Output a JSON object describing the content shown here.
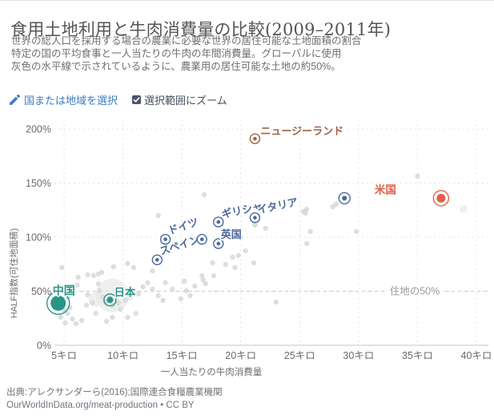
{
  "header": {
    "title": "食用土地利用と牛肉消費量の比較(2009–2011年)",
    "subtitle_lines": [
      "世界の総人口を採用する場合の農業に必要な世界の居住可能な土地面積の割合",
      "特定の国の平均食事と一人当たりの牛肉の年間消費量。グローバルに使用",
      "灰色の水平線で示されているように、農業用の居住可能な土地の約50%。"
    ],
    "select_label": "国または地域を選択",
    "zoom_label": "選択範囲にズーム",
    "zoom_checked": true
  },
  "chart_data": {
    "type": "scatter",
    "title": "食用土地利用と牛肉消費量の比較(2009–2011年)",
    "xlabel": "一人当たりの牛肉消費量",
    "ylabel": "HALF指数(可住地面積)",
    "xlim": [
      4.18,
      41.02
    ],
    "ylim": [
      0,
      208.9
    ],
    "grid": true,
    "x_ticks": [
      {
        "value": 5,
        "label": "5キロ"
      },
      {
        "value": 10,
        "label": "10キロ"
      },
      {
        "value": 15,
        "label": "15キロ"
      },
      {
        "value": 20,
        "label": "20キロ"
      },
      {
        "value": 25,
        "label": "25キロ"
      },
      {
        "value": 30,
        "label": "30キロ"
      },
      {
        "value": 35,
        "label": "35キロ"
      },
      {
        "value": 40,
        "label": "40キロ"
      }
    ],
    "y_ticks": [
      {
        "value": 0,
        "label": "0%"
      },
      {
        "value": 50,
        "label": "50%"
      },
      {
        "value": 100,
        "label": "100%"
      },
      {
        "value": 150,
        "label": "150%"
      },
      {
        "value": 200,
        "label": "200%"
      }
    ],
    "reference_line": {
      "value": 50,
      "label": "住地の50%"
    },
    "series": {
      "highlighted": [
        {
          "id": "china",
          "label": "中国",
          "x": 4.5,
          "y": 39,
          "color": "teal",
          "r": 9.5,
          "ring_r": 14,
          "label_dx": -7,
          "label_dy": -11,
          "label_rot": 0,
          "label_anchor": "start",
          "label_size": 14
        },
        {
          "id": "japan",
          "label": "日本",
          "x": 8.9,
          "y": 42,
          "color": "teal",
          "r": 4,
          "ring_r": 7.5,
          "label_dx": 5,
          "label_dy": -5,
          "label_rot": 0,
          "label_anchor": "start",
          "label_size": 13.5
        },
        {
          "id": "spain",
          "label": "スペイン",
          "x": 12.9,
          "y": 79,
          "color": "blue",
          "r": 2.3,
          "ring_r": 6,
          "label_dx": 5,
          "label_dy": -6,
          "label_rot": -18,
          "label_anchor": "start",
          "label_size": 13
        },
        {
          "id": "germany",
          "label": "ドイツ",
          "x": 13.6,
          "y": 98,
          "color": "blue",
          "r": 2.3,
          "ring_r": 6,
          "label_dx": 5,
          "label_dy": -6,
          "label_rot": -18,
          "label_anchor": "start",
          "label_size": 13
        },
        {
          "id": "unlabeled-a",
          "label": "",
          "x": 16.7,
          "y": 98,
          "color": "blue",
          "r": 2.3,
          "ring_r": 6,
          "label_dx": 0,
          "label_dy": 0,
          "label_rot": 0,
          "label_anchor": "start",
          "label_size": 13
        },
        {
          "id": "uk",
          "label": "英国",
          "x": 18.1,
          "y": 94,
          "color": "blue",
          "r": 2.3,
          "ring_r": 6,
          "label_dx": 3,
          "label_dy": -7,
          "label_rot": 0,
          "label_anchor": "start",
          "label_size": 13
        },
        {
          "id": "greece",
          "label": "ギリシャ",
          "x": 18.1,
          "y": 114,
          "color": "blue",
          "r": 2.3,
          "ring_r": 6,
          "label_dx": 5,
          "label_dy": -5,
          "label_rot": -12,
          "label_anchor": "start",
          "label_size": 13
        },
        {
          "id": "italy",
          "label": "イタリア",
          "x": 21.2,
          "y": 118,
          "color": "blue",
          "r": 2.3,
          "ring_r": 6,
          "label_dx": 4,
          "label_dy": -5,
          "label_rot": -12,
          "label_anchor": "start",
          "label_size": 13
        },
        {
          "id": "new-zealand",
          "label": "ニュージーランド",
          "x": 21.2,
          "y": 191,
          "color": "brown",
          "r": 2.3,
          "ring_r": 6,
          "label_dx": 7,
          "label_dy": -5,
          "label_rot": 0,
          "label_anchor": "start",
          "label_size": 13
        },
        {
          "id": "unlabeled-b",
          "label": "",
          "x": 28.8,
          "y": 136,
          "color": "blue",
          "r": 3,
          "ring_r": 7,
          "label_dx": 0,
          "label_dy": 0,
          "label_rot": 0,
          "label_anchor": "start",
          "label_size": 13
        },
        {
          "id": "usa",
          "label": "米国",
          "x": 37,
          "y": 136,
          "color": "red",
          "r": 5.5,
          "ring_r": 9.5,
          "label_dx": -56,
          "label_dy": -6,
          "label_rot": 0,
          "label_anchor": "end",
          "label_size": 13.5
        }
      ],
      "background_points": [
        [
          4.7,
          25.9
        ],
        [
          4.8,
          71.9
        ],
        [
          5,
          32.6
        ],
        [
          5.1,
          20.7
        ],
        [
          5.3,
          29.6
        ],
        [
          5.3,
          44.4
        ],
        [
          5.5,
          34.8
        ],
        [
          5.7,
          24.4
        ],
        [
          5.7,
          50.4
        ],
        [
          6,
          20
        ],
        [
          6.1,
          55.6
        ],
        [
          6.2,
          63
        ],
        [
          6.5,
          23
        ],
        [
          6.9,
          37
        ],
        [
          7,
          46.7
        ],
        [
          7,
          65.2
        ],
        [
          7.4,
          39.3
        ],
        [
          7.5,
          64.4
        ],
        [
          7.7,
          29.6
        ],
        [
          7.9,
          57
        ],
        [
          7.9,
          65.9
        ],
        [
          8,
          50.4
        ],
        [
          8.2,
          67.4
        ],
        [
          8.3,
          44.4
        ],
        [
          8.5,
          40
        ],
        [
          8.6,
          22.2
        ],
        [
          9.1,
          25.9
        ],
        [
          9.1,
          37
        ],
        [
          9.2,
          72.6
        ],
        [
          9.6,
          39.3
        ],
        [
          9.8,
          33.3
        ],
        [
          10.2,
          41.5
        ],
        [
          10.4,
          25.9
        ],
        [
          10.4,
          75.6
        ],
        [
          10.6,
          44.4
        ],
        [
          10.9,
          71.9
        ],
        [
          11.1,
          29.6
        ],
        [
          11.3,
          47.4
        ],
        [
          11.7,
          54.1
        ],
        [
          12.1,
          57.8
        ],
        [
          12.5,
          51.9
        ],
        [
          12.5,
          68.9
        ],
        [
          13,
          45.9
        ],
        [
          13.4,
          41.5
        ],
        [
          13.6,
          57.8
        ],
        [
          14.2,
          51.9
        ],
        [
          14.9,
          43
        ],
        [
          15.2,
          59.3
        ],
        [
          15.4,
          50.4
        ],
        [
          15.7,
          45.9
        ],
        [
          16.1,
          54.8
        ],
        [
          16.7,
          64.4
        ],
        [
          16.8,
          60.7
        ],
        [
          17,
          57
        ],
        [
          13,
          120
        ],
        [
          16.9,
          139.3
        ],
        [
          17.6,
          76.3
        ],
        [
          17.7,
          64.4
        ],
        [
          18.7,
          74.8
        ],
        [
          19.3,
          81.5
        ],
        [
          19.5,
          71.9
        ],
        [
          19.8,
          83
        ],
        [
          20,
          100
        ],
        [
          20.4,
          87.4
        ],
        [
          21.1,
          76.3
        ],
        [
          21.2,
          111.1
        ],
        [
          22.1,
          108.1
        ],
        [
          23,
          40
        ],
        [
          25.3,
          123.7
        ],
        [
          25.5,
          122.2
        ],
        [
          25.6,
          94.1
        ],
        [
          25.6,
          125.9
        ],
        [
          25.9,
          105.2
        ],
        [
          27.8,
          128.1
        ],
        [
          28.1,
          130.4
        ],
        [
          29.8,
          105.2
        ],
        [
          35,
          156.3
        ]
      ],
      "background_bubbles": [
        [
          9.1,
          45.9,
          21
        ],
        [
          7.7,
          42.2,
          9
        ],
        [
          38.9,
          125.9,
          5
        ]
      ]
    },
    "colors": {
      "teal": "#2A9488",
      "blue": "#4B6A9B",
      "brown": "#9C6746",
      "red": "#E0604C",
      "grid": "#e4e4e7",
      "axis": "#c6c6ca",
      "dots": "#dcdcdc",
      "dot_edge": "#c8c8c8",
      "tick": "#6b6b70",
      "ref": "#c9c9ce",
      "ref_label": "#9a9aa0",
      "axis_title": "#6e6e73"
    },
    "legend_position": "none"
  },
  "footer": {
    "source": "出典:アレクサンダーら(2016);国際連合食糧農業機関",
    "link": "OurWorldInData.org/meat-production • CC BY"
  }
}
